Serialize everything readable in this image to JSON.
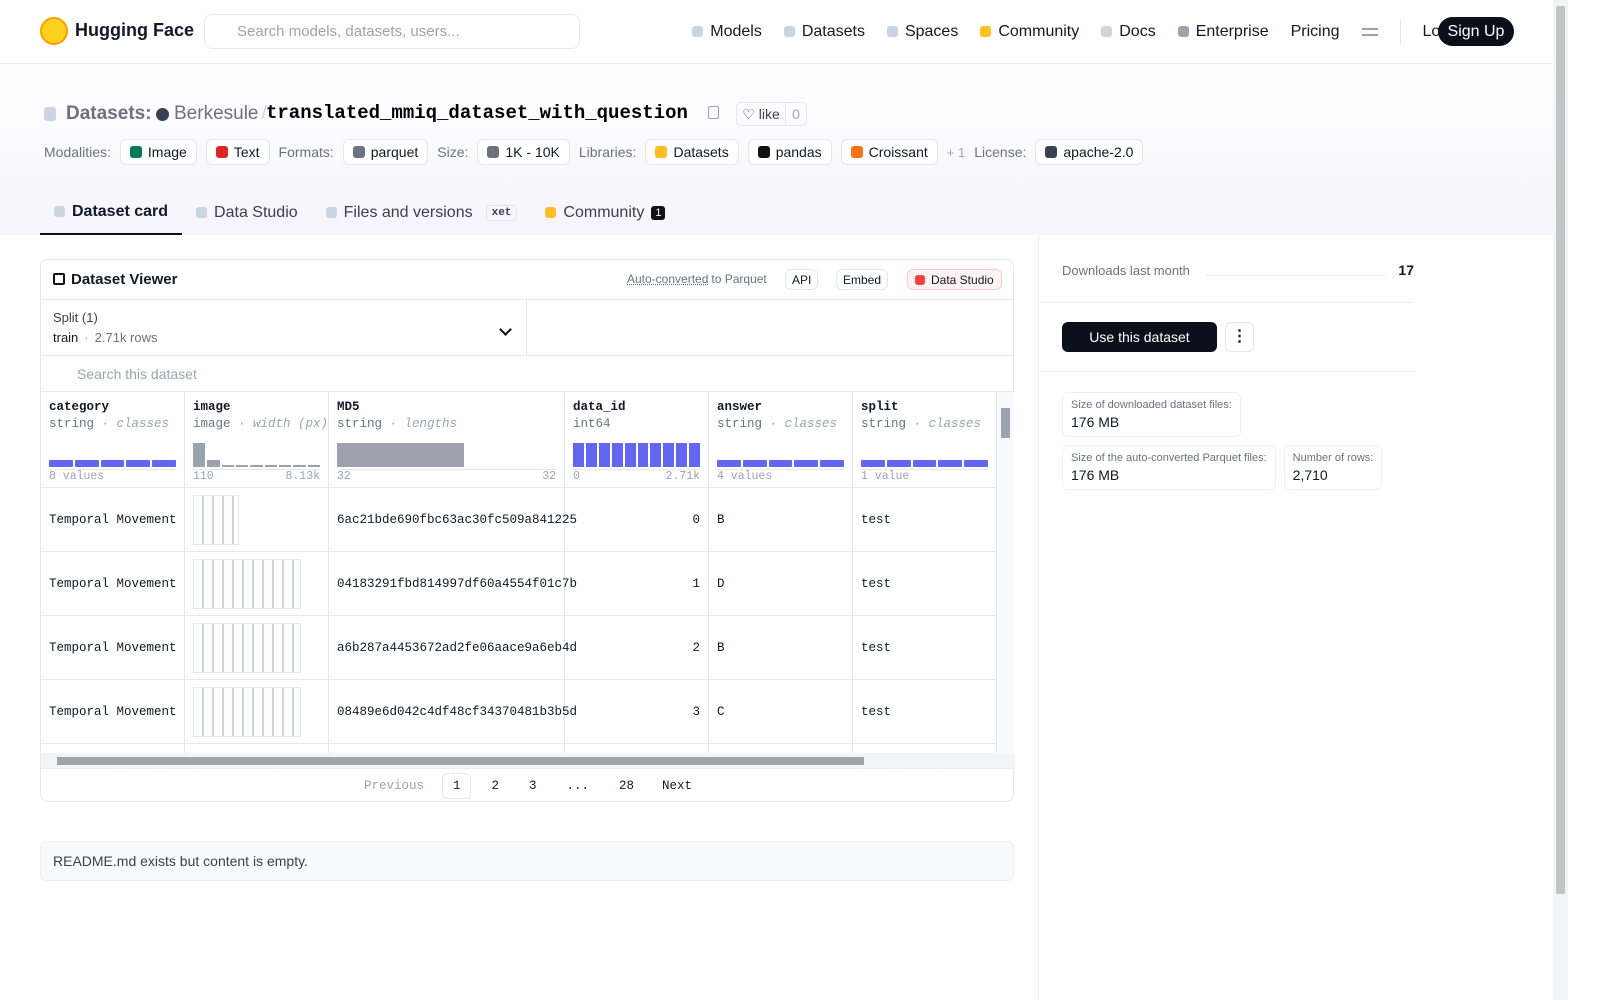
{
  "nav": {
    "brand": "Hugging Face",
    "search_placeholder": "Search models, datasets, users...",
    "links": [
      "Models",
      "Datasets",
      "Spaces",
      "Community",
      "Docs",
      "Enterprise",
      "Pricing"
    ],
    "login": "Log In",
    "signup": "Sign Up"
  },
  "header": {
    "section": "Datasets:",
    "owner": "Berkesule",
    "separator": "/",
    "name": "translated_mmiq_dataset_with_question",
    "like": "like",
    "like_count": 0,
    "tags": [
      {
        "label": "Modalities:",
        "items": [
          "Image",
          "Text"
        ]
      },
      {
        "label": "Formats:",
        "items": [
          "parquet"
        ]
      },
      {
        "label": "Size:",
        "items": [
          "1K - 10K"
        ]
      },
      {
        "label": "Libraries:",
        "items": [
          "Datasets",
          "pandas",
          "Croissant"
        ],
        "more": "+ 1"
      },
      {
        "label": "License:",
        "items": [
          "apache-2.0"
        ]
      }
    ],
    "tabs": [
      "Dataset card",
      "Data Studio",
      "Files and versions",
      "Community"
    ],
    "xet": "xet",
    "community_count": 1
  },
  "viewer": {
    "title": "Dataset Viewer",
    "auto_converted": "Auto-converted",
    "to_parquet": "to Parquet",
    "api": "API",
    "embed": "Embed",
    "data_studio": "Data Studio",
    "split_label": "Split (1)",
    "split": "train",
    "split_rows": "2.71k rows",
    "search_placeholder": "Search this dataset",
    "columns": [
      {
        "name": "category",
        "type": "string",
        "kind": "classes",
        "stats": [
          "8 values"
        ]
      },
      {
        "name": "image",
        "type": "image",
        "kind": "width (px)",
        "stats": [
          "110",
          "8.13k"
        ]
      },
      {
        "name": "MD5",
        "type": "string",
        "kind": "lengths",
        "stats": [
          "32",
          "32"
        ]
      },
      {
        "name": "data_id",
        "type": "int64",
        "stats": [
          "0",
          "2.71k"
        ]
      },
      {
        "name": "answer",
        "type": "string",
        "kind": "classes",
        "stats": [
          "4 values"
        ]
      },
      {
        "name": "split",
        "type": "string",
        "kind": "classes",
        "stats": [
          "1 value"
        ]
      }
    ],
    "rows": [
      {
        "category": "Temporal Movement",
        "MD5": "6ac21bde690fbc63ac30fc509a841225",
        "data_id": 0,
        "answer": "B",
        "split": "test"
      },
      {
        "category": "Temporal Movement",
        "MD5": "04183291fbd814997df60a4554f01c7b",
        "data_id": 1,
        "answer": "D",
        "split": "test"
      },
      {
        "category": "Temporal Movement",
        "MD5": "a6b287a4453672ad2fe06aace9a6eb4d",
        "data_id": 2,
        "answer": "B",
        "split": "test"
      },
      {
        "category": "Temporal Movement",
        "MD5": "08489e6d042c4df48cf34370481b3b5d",
        "data_id": 3,
        "answer": "C",
        "split": "test"
      }
    ],
    "pagination": {
      "previous": "Previous",
      "pages": [
        "1",
        "2",
        "3",
        "...",
        "28"
      ],
      "next": "Next"
    }
  },
  "readme": "README.md exists but content is empty.",
  "sidebar": {
    "downloads_label": "Downloads last month",
    "downloads": 17,
    "use_button": "Use this dataset",
    "stats": [
      {
        "label": "Size of downloaded dataset files:",
        "value": "176 MB"
      },
      {
        "label": "Size of the auto-converted Parquet files:",
        "value": "176 MB"
      },
      {
        "label": "Number of rows:",
        "value": "2,710"
      }
    ]
  }
}
